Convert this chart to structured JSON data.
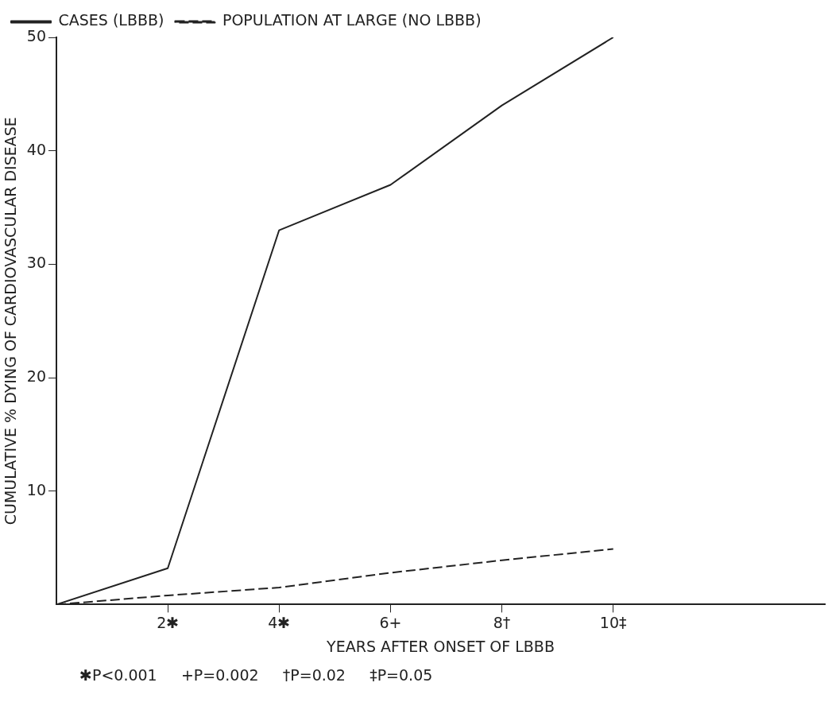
{
  "chart_data": {
    "type": "line",
    "xlabel": "YEARS AFTER ONSET OF LBBB",
    "ylabel": "CUMULATIVE % DYING OF CARDIOVASCULAR DISEASE",
    "x": [
      0,
      2,
      4,
      6,
      8,
      10
    ],
    "series": [
      {
        "name": "CASES (LBBB)",
        "color": "#222222",
        "values": [
          0,
          3.2,
          33,
          37,
          44,
          50
        ],
        "line_style": "solid"
      },
      {
        "name": "POPULATION AT LARGE (NO LBBB)",
        "color": "#222222",
        "values": [
          0,
          0.8,
          1.5,
          2.8,
          3.9,
          4.9
        ],
        "line_style": "dashed"
      }
    ],
    "xlim": [
      0,
      13.8
    ],
    "xticks": [
      {
        "value": 2,
        "label": "2✱"
      },
      {
        "value": 4,
        "label": "4✱"
      },
      {
        "value": 6,
        "label": "6+"
      },
      {
        "value": 8,
        "label": "8†"
      },
      {
        "value": 10,
        "label": "10‡"
      }
    ],
    "ylim": [
      0,
      50
    ],
    "yticks": [
      10,
      20,
      30,
      40,
      50
    ],
    "grid": false,
    "legend": "top left",
    "marker": "none",
    "annotations": [
      "✱P<0.001     +P=0.002     †P=0.02     ‡P=0.05"
    ]
  }
}
